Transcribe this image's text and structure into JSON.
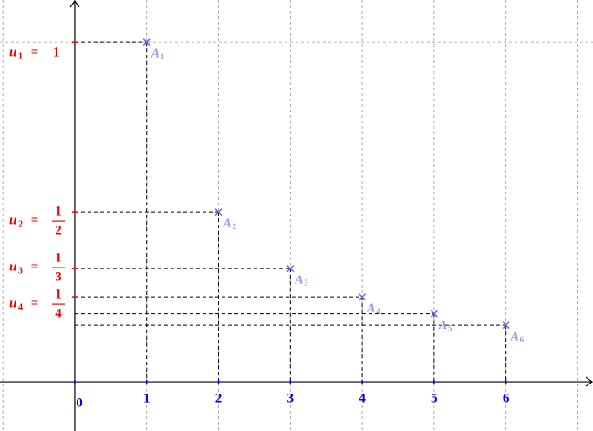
{
  "chart_data": {
    "type": "scatter",
    "xlim": [
      -1.04,
      7.21
    ],
    "ylim": [
      -0.145,
      1.124
    ],
    "xticks": [
      0,
      1,
      2,
      3,
      4,
      5,
      6
    ],
    "grid_x": [
      -1,
      0,
      1,
      2,
      3,
      4,
      5,
      6,
      7
    ],
    "grid_y": [
      1
    ],
    "x": [
      1,
      2,
      3,
      4,
      5,
      6
    ],
    "values": [
      1,
      0.5,
      0.3333,
      0.25,
      0.2,
      0.1667
    ],
    "color": "#6666ee",
    "point_labels": [
      {
        "letter": "A",
        "sub": "1"
      },
      {
        "letter": "A",
        "sub": "2"
      },
      {
        "letter": "A",
        "sub": "3"
      },
      {
        "letter": "A",
        "sub": "4"
      },
      {
        "letter": "A",
        "sub": "5"
      },
      {
        "letter": "A",
        "sub": "6"
      }
    ],
    "y_annotations": [
      {
        "value": 1,
        "var": "u",
        "sub": "1",
        "eq": "=",
        "rhs": "1"
      },
      {
        "value": 0.5,
        "var": "u",
        "sub": "2",
        "eq": "=",
        "num": "1",
        "den": "2"
      },
      {
        "value": 0.3333,
        "var": "u",
        "sub": "3",
        "eq": "=",
        "num": "1",
        "den": "3"
      },
      {
        "value": 0.25,
        "var": "u",
        "sub": "4",
        "eq": "=",
        "num": "1",
        "den": "4"
      }
    ]
  }
}
